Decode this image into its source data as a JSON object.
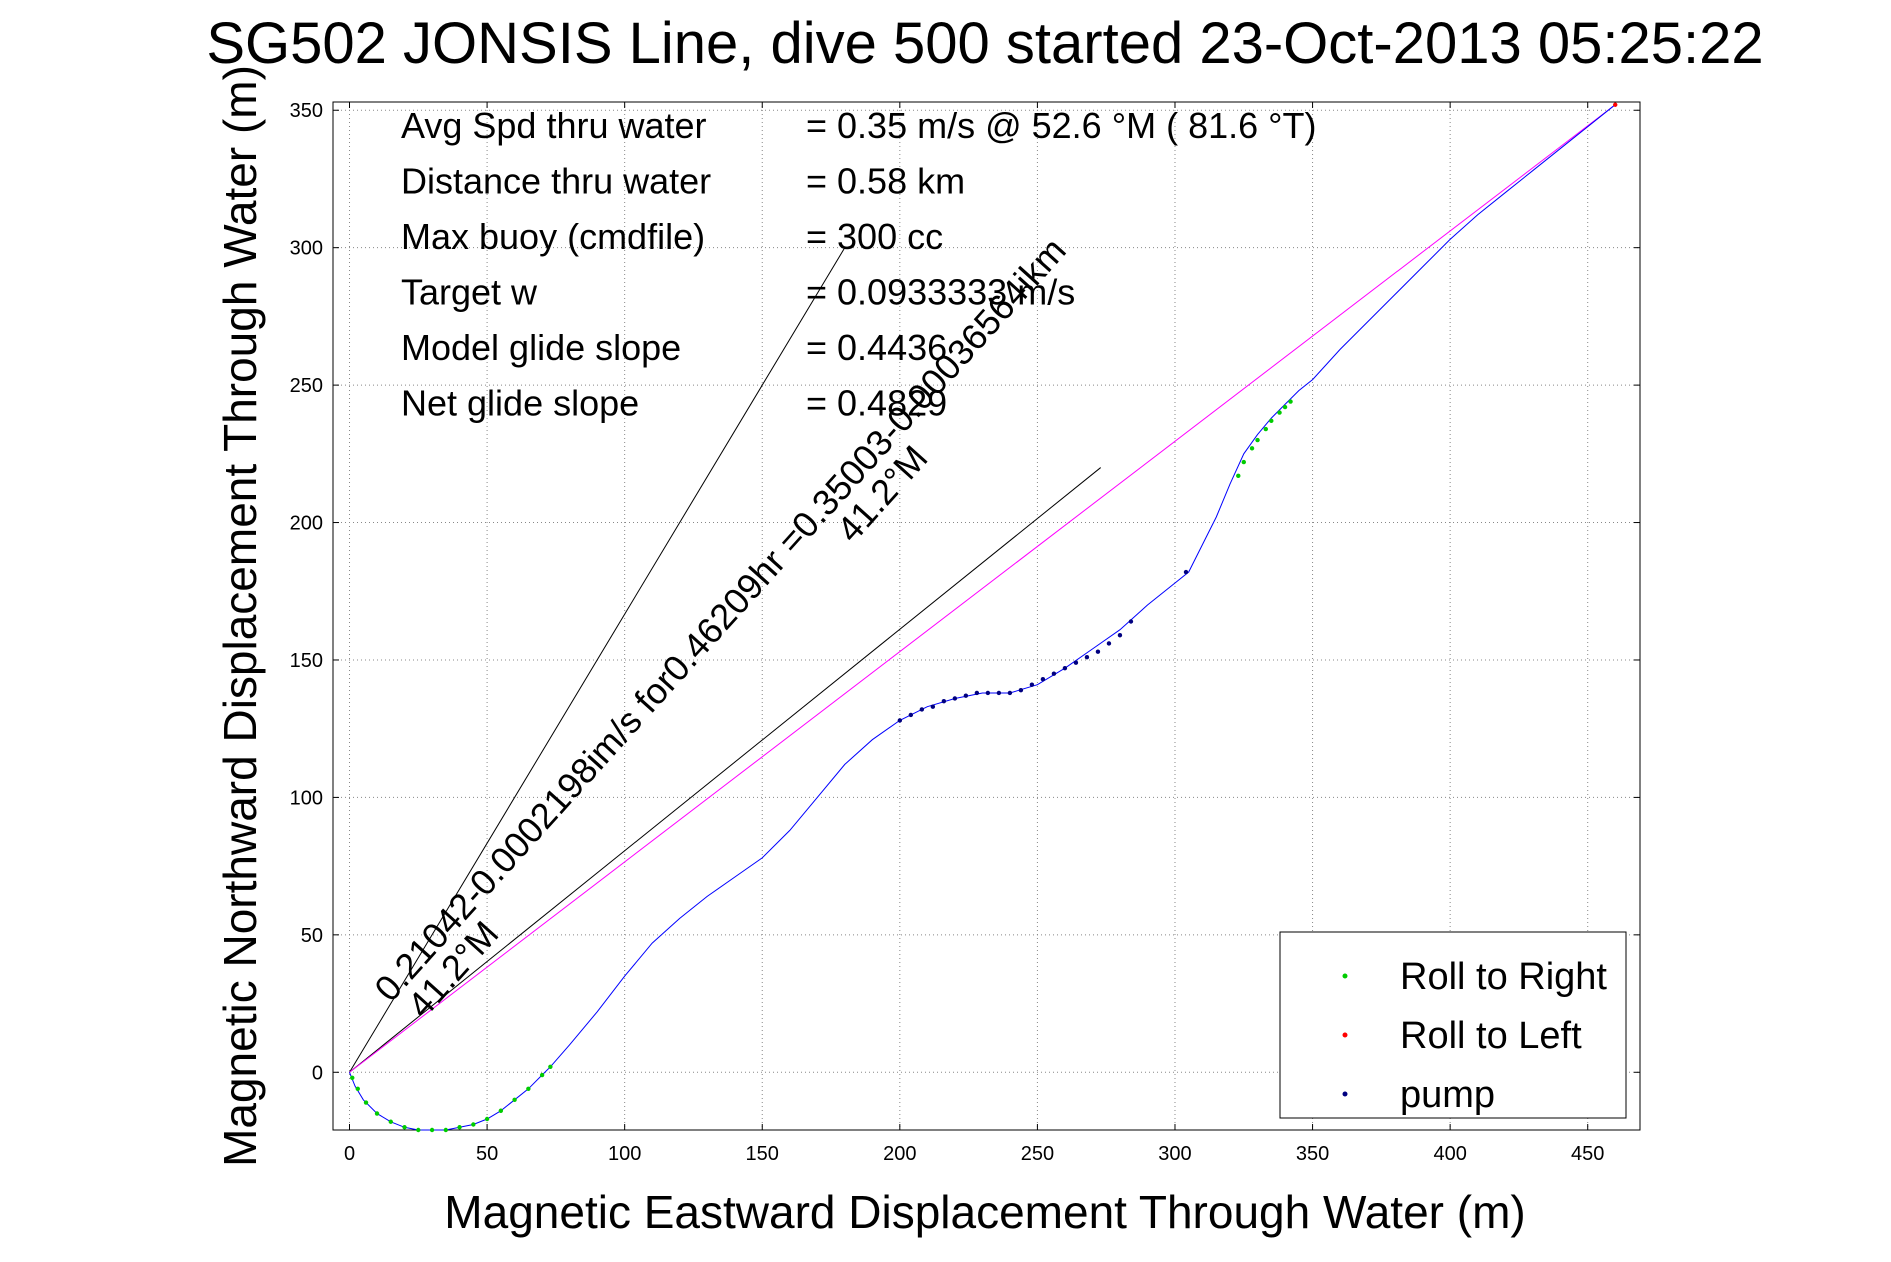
{
  "chart_data": {
    "type": "scatter",
    "title": "SG502 JONSIS Line, dive 500 started 23-Oct-2013 05:25:22",
    "xlabel": "Magnetic Eastward Displacement Through Water (m)",
    "ylabel": "Magnetic Northward Displacement Through Water (m)",
    "xlim": [
      -6,
      469
    ],
    "ylim": [
      -21,
      353
    ],
    "xticks": [
      0,
      50,
      100,
      150,
      200,
      250,
      300,
      350,
      400,
      450
    ],
    "yticks": [
      0,
      50,
      100,
      150,
      200,
      250,
      300,
      350
    ],
    "grid": true,
    "legend_position": "bottom-right",
    "stats": [
      {
        "label": "Avg Spd thru water",
        "value": "=  0.35 m/s @  52.6 °M ( 81.6 °T)"
      },
      {
        "label": "Distance thru water",
        "value": "=  0.58 km"
      },
      {
        "label": "Max buoy (cmdfile)",
        "value": "= 300 cc"
      },
      {
        "label": "Target w",
        "value": "= 0.0933333 m/s"
      },
      {
        "label": "Model glide slope",
        "value": "= 0.4436"
      },
      {
        "label": "Net glide slope",
        "value": "= 0.4829"
      }
    ],
    "annotations": [
      {
        "text": "0.21042-0.0002198im/s for0.46209hr =0.35003-0.00036564ikm",
        "x": 15,
        "y": 25,
        "angle": 48
      },
      {
        "text": "41.2°M",
        "x": 27,
        "y": 19,
        "angle": 48
      },
      {
        "text": "41.2°M",
        "x": 183,
        "y": 192,
        "angle": 48
      }
    ],
    "reference_lines": [
      {
        "name": "heading-line-steep",
        "x": [
          0,
          180
        ],
        "y": [
          0,
          300
        ],
        "color": "#000000"
      },
      {
        "name": "heading-line-shallow",
        "x": [
          0,
          273
        ],
        "y": [
          0,
          220
        ],
        "color": "#000000"
      },
      {
        "name": "net-displacement-line",
        "x": [
          0,
          460
        ],
        "y": [
          0,
          352
        ],
        "color": "#ff00ff"
      }
    ],
    "track_color": "#0000ff",
    "track": {
      "x": [
        0,
        2,
        5,
        10,
        15,
        20,
        25,
        30,
        35,
        40,
        45,
        50,
        55,
        60,
        65,
        70,
        73,
        80,
        90,
        100,
        110,
        120,
        130,
        140,
        150,
        160,
        170,
        180,
        190,
        200,
        210,
        220,
        230,
        240,
        250,
        260,
        270,
        280,
        290,
        300,
        305,
        310,
        315,
        320,
        325,
        330,
        335,
        340,
        345,
        350,
        360,
        370,
        380,
        390,
        400,
        410,
        420,
        430,
        440,
        450,
        460
      ],
      "y": [
        0,
        -5,
        -10,
        -15,
        -18,
        -20,
        -21,
        -21,
        -21,
        -20,
        -19,
        -17,
        -14,
        -10,
        -6,
        -1,
        2,
        10,
        22,
        35,
        47,
        56,
        64,
        71,
        78,
        88,
        100,
        112,
        121,
        128,
        133,
        136,
        138,
        138,
        141,
        147,
        154,
        161,
        170,
        178,
        182,
        192,
        202,
        214,
        225,
        232,
        238,
        243,
        248,
        252,
        263,
        273,
        283,
        293,
        303,
        312,
        320,
        328,
        336,
        344,
        352
      ]
    },
    "series": [
      {
        "name": "Roll to Right",
        "color": "#00cc00",
        "x": [
          1,
          3,
          6,
          10,
          15,
          20,
          25,
          30,
          35,
          40,
          45,
          50,
          55,
          60,
          65,
          70,
          73,
          323,
          325,
          328,
          330,
          333,
          335,
          338,
          340,
          342
        ],
        "y": [
          -2,
          -6,
          -11,
          -15,
          -18,
          -20,
          -21,
          -21,
          -21,
          -20,
          -19,
          -17,
          -14,
          -10,
          -6,
          -1,
          2,
          217,
          222,
          227,
          230,
          234,
          237,
          240,
          242,
          244
        ]
      },
      {
        "name": "Roll to Left",
        "color": "#ff0000",
        "x": [
          460
        ],
        "y": [
          352
        ]
      },
      {
        "name": "pump",
        "color": "#000080",
        "x": [
          200,
          204,
          208,
          212,
          216,
          220,
          224,
          228,
          232,
          236,
          240,
          244,
          248,
          252,
          256,
          260,
          264,
          268,
          272,
          276,
          280,
          284,
          304
        ],
        "y": [
          128,
          130,
          132,
          133,
          135,
          136,
          137,
          138,
          138,
          138,
          138,
          139,
          141,
          143,
          145,
          147,
          149,
          151,
          153,
          156,
          159,
          164,
          182
        ]
      }
    ]
  }
}
